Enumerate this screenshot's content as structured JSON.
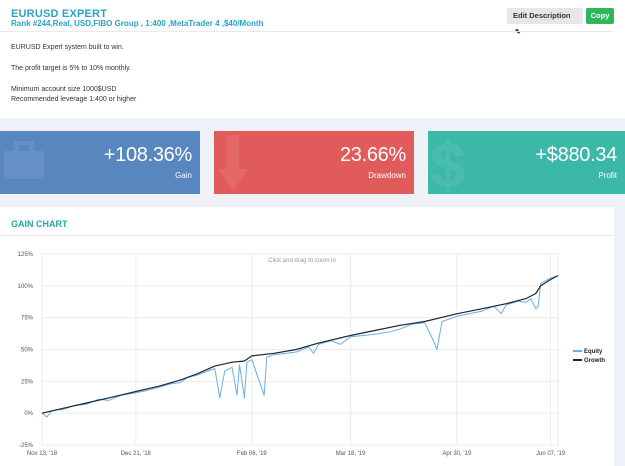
{
  "system": {
    "title": "EURUSD EXPERT",
    "subtitle": "Rank #244,Real, USD,FIBO Group , 1:400 ,MetaTrader 4 ,$40/Month"
  },
  "buttons": {
    "edit_label": "Edit Description",
    "copy_label": "Copy"
  },
  "description": [
    "EURUSD Expert system built to win.",
    "The profit target is 5% to 10% monthly.",
    "Minimum account size 1000$USD",
    "Recommended leverage 1:400 or higher"
  ],
  "stats": [
    {
      "value": "+108.36%",
      "label": "Gain",
      "color": "#5887c0"
    },
    {
      "value": "23.66%",
      "label": "Drawdown",
      "color": "#e15b5b"
    },
    {
      "value": "+$880.34",
      "label": "Profit",
      "color": "#3cb8a9"
    }
  ],
  "chart_section_title": "GAIN CHART",
  "chart_data": {
    "type": "line",
    "hint": "Click and drag to zoom in",
    "ylim": [
      -25,
      125
    ],
    "yticks": [
      "125%",
      "100%",
      "75%",
      "50%",
      "25%",
      "0%",
      "-25%"
    ],
    "ytick_values": [
      125,
      100,
      75,
      50,
      25,
      0,
      -25
    ],
    "x_range": [
      "2018-11-13",
      "2019-06-10"
    ],
    "xticks": [
      {
        "label": "Nov 13, '18",
        "date": "2018-11-13"
      },
      {
        "label": "Dec 21, '18",
        "date": "2018-12-21"
      },
      {
        "label": "Feb 06, '19",
        "date": "2019-02-06"
      },
      {
        "label": "Mar 18, '19",
        "date": "2019-03-18"
      },
      {
        "label": "Apr 30, '19",
        "date": "2019-04-30"
      },
      {
        "label": "Jun 07, '19",
        "date": "2019-06-07"
      }
    ],
    "legend": "right",
    "series": [
      {
        "name": "Growth",
        "color": "#1c2733",
        "points": [
          [
            "2018-11-13",
            0
          ],
          [
            "2018-11-22",
            4
          ],
          [
            "2018-12-01",
            8
          ],
          [
            "2018-12-10",
            12
          ],
          [
            "2018-12-21",
            17
          ],
          [
            "2018-12-30",
            21
          ],
          [
            "2019-01-08",
            26
          ],
          [
            "2019-01-15",
            31
          ],
          [
            "2019-01-22",
            37
          ],
          [
            "2019-01-29",
            40
          ],
          [
            "2019-02-03",
            41
          ],
          [
            "2019-02-06",
            45
          ],
          [
            "2019-02-15",
            47
          ],
          [
            "2019-02-24",
            50
          ],
          [
            "2019-03-05",
            55
          ],
          [
            "2019-03-18",
            61
          ],
          [
            "2019-03-28",
            65
          ],
          [
            "2019-04-07",
            69
          ],
          [
            "2019-04-17",
            72
          ],
          [
            "2019-04-30",
            78
          ],
          [
            "2019-05-10",
            82
          ],
          [
            "2019-05-20",
            86
          ],
          [
            "2019-05-28",
            90
          ],
          [
            "2019-06-01",
            94
          ],
          [
            "2019-06-03",
            100
          ],
          [
            "2019-06-07",
            105
          ],
          [
            "2019-06-10",
            108
          ]
        ]
      },
      {
        "name": "Equity",
        "color": "#6aaeea",
        "points": [
          [
            "2018-11-13",
            0
          ],
          [
            "2018-11-15",
            -3
          ],
          [
            "2018-11-17",
            2
          ],
          [
            "2018-11-22",
            3
          ],
          [
            "2018-11-26",
            6
          ],
          [
            "2018-12-01",
            7
          ],
          [
            "2018-12-06",
            11
          ],
          [
            "2018-12-10",
            10
          ],
          [
            "2018-12-15",
            14
          ],
          [
            "2018-12-21",
            16
          ],
          [
            "2018-12-26",
            18
          ],
          [
            "2018-12-30",
            20
          ],
          [
            "2019-01-04",
            23
          ],
          [
            "2019-01-08",
            24
          ],
          [
            "2019-01-11",
            28
          ],
          [
            "2019-01-15",
            30
          ],
          [
            "2019-01-19",
            33
          ],
          [
            "2019-01-22",
            35
          ],
          [
            "2019-01-24",
            12
          ],
          [
            "2019-01-26",
            33
          ],
          [
            "2019-01-29",
            36
          ],
          [
            "2019-01-31",
            14
          ],
          [
            "2019-02-01",
            38
          ],
          [
            "2019-02-03",
            12
          ],
          [
            "2019-02-04",
            40
          ],
          [
            "2019-02-06",
            42
          ],
          [
            "2019-02-09",
            25
          ],
          [
            "2019-02-11",
            14
          ],
          [
            "2019-02-12",
            44
          ],
          [
            "2019-02-15",
            46
          ],
          [
            "2019-02-20",
            47
          ],
          [
            "2019-02-24",
            48
          ],
          [
            "2019-03-01",
            52
          ],
          [
            "2019-03-03",
            47
          ],
          [
            "2019-03-05",
            54
          ],
          [
            "2019-03-10",
            57
          ],
          [
            "2019-03-14",
            54
          ],
          [
            "2019-03-18",
            60
          ],
          [
            "2019-03-23",
            61
          ],
          [
            "2019-03-28",
            62
          ],
          [
            "2019-04-03",
            64
          ],
          [
            "2019-04-07",
            66
          ],
          [
            "2019-04-12",
            70
          ],
          [
            "2019-04-17",
            71
          ],
          [
            "2019-04-20",
            59
          ],
          [
            "2019-04-22",
            50
          ],
          [
            "2019-04-24",
            72
          ],
          [
            "2019-04-30",
            76
          ],
          [
            "2019-05-05",
            78
          ],
          [
            "2019-05-10",
            80
          ],
          [
            "2019-05-15",
            84
          ],
          [
            "2019-05-18",
            78
          ],
          [
            "2019-05-20",
            85
          ],
          [
            "2019-05-25",
            88
          ],
          [
            "2019-05-28",
            87
          ],
          [
            "2019-05-30",
            90
          ],
          [
            "2019-06-01",
            82
          ],
          [
            "2019-06-02",
            84
          ],
          [
            "2019-06-03",
            102
          ],
          [
            "2019-06-05",
            104
          ],
          [
            "2019-06-07",
            106
          ],
          [
            "2019-06-10",
            108
          ]
        ]
      }
    ]
  }
}
